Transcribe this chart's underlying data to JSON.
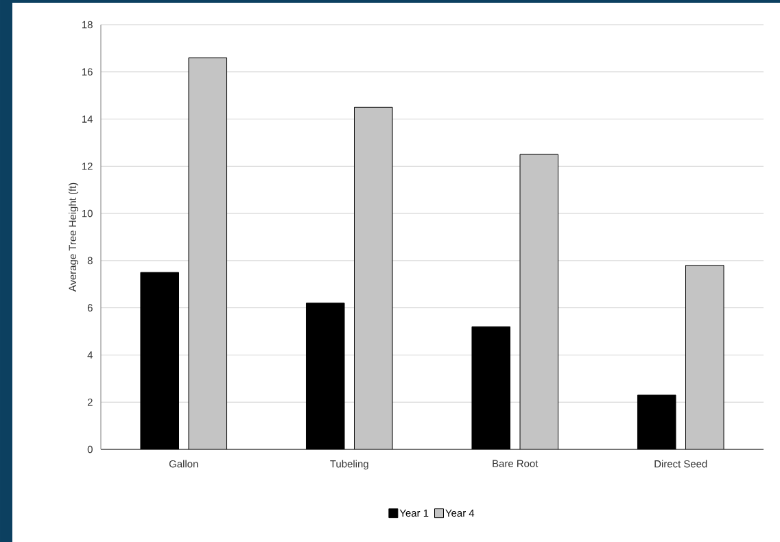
{
  "chart_data": {
    "type": "bar",
    "ylabel": "Average Tree Height (ft)",
    "categories": [
      "Gallon",
      "Tubeling",
      "Bare Root",
      "Direct Seed"
    ],
    "series": [
      {
        "name": "Year 1",
        "color": "#000000",
        "values": [
          7.5,
          6.2,
          5.2,
          2.3
        ]
      },
      {
        "name": "Year 4",
        "color": "#c4c4c4",
        "values": [
          16.6,
          14.5,
          12.5,
          7.8
        ]
      }
    ],
    "ylim": [
      0,
      18
    ],
    "yticks": [
      0,
      2,
      4,
      6,
      8,
      10,
      12,
      14,
      16,
      18
    ],
    "grid": "y",
    "legend": "bottom"
  }
}
